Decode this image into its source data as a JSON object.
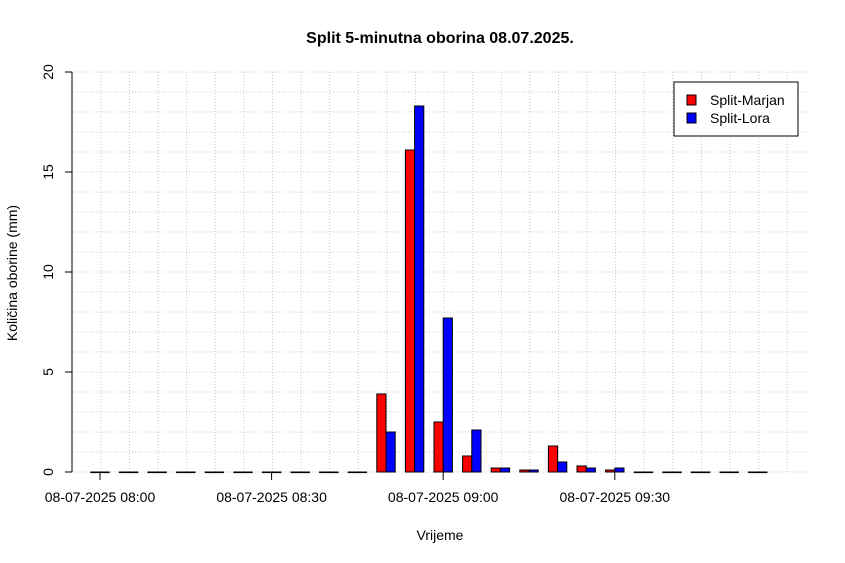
{
  "chart_data": {
    "type": "bar",
    "title": "Split 5-minutna oborina 08.07.2025.",
    "xlabel": "Vrijeme",
    "ylabel": "Količina oborine (mm)",
    "ylim": [
      0,
      20
    ],
    "y_ticks": [
      "0",
      "5",
      "10",
      "15",
      "20"
    ],
    "x_tick_labels": [
      "08-07-2025 08:00",
      "08-07-2025 08:30",
      "08-07-2025 09:00",
      "08-07-2025 09:30"
    ],
    "x_tick_times": [
      "08:00",
      "08:30",
      "09:00",
      "09:30"
    ],
    "categories": [
      "08:00",
      "08:05",
      "08:10",
      "08:15",
      "08:20",
      "08:25",
      "08:30",
      "08:35",
      "08:40",
      "08:45",
      "08:50",
      "08:55",
      "09:00",
      "09:05",
      "09:10",
      "09:15",
      "09:20",
      "09:25",
      "09:30",
      "09:35",
      "09:40",
      "09:45",
      "09:50",
      "09:55"
    ],
    "grid": true,
    "legend_position": "top-right",
    "series": [
      {
        "name": "Split-Marjan",
        "color": "#ff0000",
        "values": [
          0,
          0,
          0,
          0,
          0,
          0,
          0,
          0,
          0,
          0,
          3.9,
          16.1,
          2.5,
          0.8,
          0.2,
          0.1,
          1.3,
          0.3,
          0.1,
          0,
          0,
          0,
          0,
          0
        ]
      },
      {
        "name": "Split-Lora",
        "color": "#0000ff",
        "values": [
          0,
          0,
          0,
          0,
          0,
          0,
          0,
          0,
          0,
          0,
          2.0,
          18.3,
          7.7,
          2.1,
          0.2,
          0.1,
          0.5,
          0.2,
          0.2,
          0,
          0,
          0,
          0,
          0
        ]
      }
    ]
  }
}
